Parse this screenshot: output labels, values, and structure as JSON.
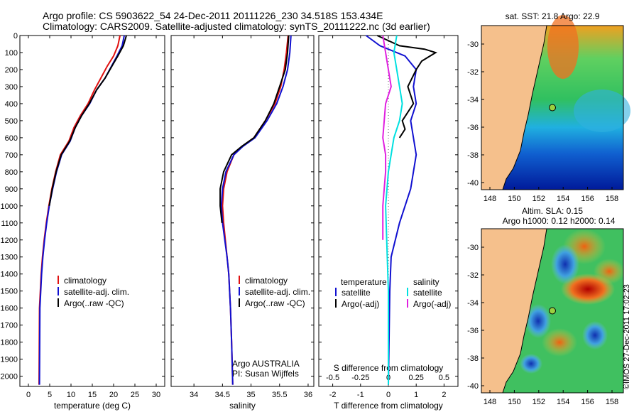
{
  "header": {
    "line1": "Argo profile: CS 5903622_54 24-Dec-2011 20111226_230 34.518S 153.434E",
    "line2": "Climatology: CARS2009. Satellite-adjusted climatology: synTS_20111222.nc (3d earlier)"
  },
  "colors": {
    "climatology": "#e01010",
    "satellite": "#1010d0",
    "argo": "#000000",
    "cyan": "#00e0e0",
    "magenta": "#e020e0",
    "land": "#f5c08c"
  },
  "depth_ticks": [
    0,
    100,
    200,
    300,
    400,
    500,
    600,
    700,
    800,
    900,
    1000,
    1100,
    1200,
    1300,
    1400,
    1500,
    1600,
    1700,
    1800,
    1900,
    2000
  ],
  "chart_data": [
    {
      "type": "line",
      "id": "temperature",
      "xlabel": "temperature (deg C)",
      "ylabel": "",
      "xlim": [
        -2,
        32
      ],
      "ylim": [
        2060,
        0
      ],
      "xticks": [
        0,
        5,
        10,
        15,
        20,
        25,
        30
      ],
      "legend": {
        "position": "bottom-left",
        "entries": [
          "climatology",
          "satellite-adj. clim.",
          "Argo(..raw -QC)"
        ]
      },
      "series": [
        {
          "name": "climatology",
          "color_key": "climatology",
          "x": [
            21.5,
            21.0,
            20.0,
            18.5,
            17.0,
            15.5,
            14.0,
            12.2,
            10.7,
            9.5,
            7.5,
            6.4,
            5.5,
            4.8,
            4.2,
            3.7,
            3.3,
            3.0,
            2.8,
            2.6,
            2.5
          ],
          "y": [
            0,
            60,
            120,
            180,
            250,
            320,
            400,
            470,
            540,
            620,
            700,
            800,
            900,
            1000,
            1100,
            1200,
            1300,
            1400,
            1500,
            1600,
            2050
          ]
        },
        {
          "name": "satellite-adj. clim.",
          "color_key": "satellite",
          "x": [
            22.5,
            22.0,
            20.8,
            19.5,
            18.0,
            16.0,
            14.4,
            12.5,
            11.0,
            9.8,
            7.8,
            6.6,
            5.7,
            4.9,
            4.3,
            3.8,
            3.4,
            3.1,
            2.9,
            2.7,
            2.6
          ],
          "y": [
            0,
            60,
            120,
            180,
            250,
            320,
            400,
            470,
            540,
            620,
            700,
            800,
            900,
            1000,
            1100,
            1200,
            1300,
            1400,
            1500,
            1600,
            2050
          ]
        },
        {
          "name": "Argo(..raw -QC)",
          "color_key": "argo",
          "x": [
            23.0,
            22.3,
            21.0,
            19.6,
            18.0,
            16.0,
            14.3,
            12.5,
            11.0,
            9.7,
            7.7,
            6.5,
            5.6,
            4.9
          ],
          "y": [
            0,
            60,
            120,
            180,
            250,
            320,
            400,
            470,
            540,
            620,
            700,
            800,
            900,
            1000
          ]
        }
      ]
    },
    {
      "type": "line",
      "id": "salinity",
      "xlabel": "salinity",
      "ylabel": "",
      "xlim": [
        33.6,
        36.1
      ],
      "ylim": [
        2060,
        0
      ],
      "xticks": [
        34,
        34.5,
        35,
        35.5,
        36
      ],
      "legend": {
        "position": "bottom-right",
        "entries": [
          "climatology",
          "satellite-adj. clim.",
          "Argo(..raw -QC)"
        ]
      },
      "annotations": [
        "Argo AUSTRALIA",
        "PI: Susan Wijffels"
      ],
      "series": [
        {
          "name": "climatology",
          "color_key": "climatology",
          "x": [
            35.65,
            35.62,
            35.58,
            35.52,
            35.42,
            35.25,
            35.05,
            34.85,
            34.7,
            34.58,
            34.52,
            34.5,
            34.52,
            34.55,
            34.58,
            34.61,
            34.64,
            34.66,
            34.68
          ],
          "y": [
            0,
            100,
            200,
            300,
            400,
            500,
            600,
            650,
            700,
            800,
            900,
            1000,
            1100,
            1200,
            1300,
            1400,
            1600,
            1800,
            2050
          ]
        },
        {
          "name": "satellite-adj. clim.",
          "color_key": "satellite",
          "x": [
            35.7,
            35.68,
            35.64,
            35.56,
            35.45,
            35.28,
            35.07,
            34.86,
            34.7,
            34.56,
            34.5,
            34.48,
            34.5,
            34.54,
            34.58,
            34.61,
            34.64,
            34.66,
            34.68
          ],
          "y": [
            0,
            100,
            200,
            300,
            400,
            500,
            600,
            650,
            700,
            800,
            900,
            1000,
            1100,
            1200,
            1300,
            1400,
            1600,
            1800,
            2050
          ]
        },
        {
          "name": "Argo(..raw -QC)",
          "color_key": "argo",
          "x": [
            35.66,
            35.64,
            35.6,
            35.5,
            35.4,
            35.25,
            35.05,
            34.84,
            34.66,
            34.52,
            34.46,
            34.46,
            34.49
          ],
          "y": [
            0,
            100,
            200,
            300,
            400,
            500,
            600,
            650,
            700,
            800,
            900,
            1000,
            1100
          ]
        }
      ]
    },
    {
      "type": "line",
      "id": "difference",
      "xlabel": "T difference from climatology",
      "xlabel2": "S difference from climatology",
      "ylabel": "",
      "xlim": [
        -2.5,
        2.5
      ],
      "ylim": [
        2060,
        0
      ],
      "xticks": [
        -2,
        -1,
        0,
        1,
        2
      ],
      "xticks_top": [
        "-0.5",
        "-0.25",
        "0",
        "0.25",
        "0.5"
      ],
      "legend_temperature": {
        "title": "temperature",
        "entries": [
          "satellite",
          "Argo(-adj)"
        ]
      },
      "legend_salinity": {
        "title": "salinity",
        "entries": [
          "satellite",
          "Argo(-adj)"
        ]
      },
      "series": [
        {
          "name": "satellite",
          "group": "temperature",
          "color_key": "satellite",
          "x": [
            -0.8,
            -0.3,
            0.6,
            1.0,
            0.9,
            1.0,
            0.8,
            0.9,
            1.0,
            0.9,
            0.8,
            0.4,
            0.1,
            0.05,
            0.0
          ],
          "y": [
            0,
            60,
            120,
            200,
            300,
            400,
            500,
            600,
            700,
            800,
            900,
            1100,
            1300,
            1500,
            2050
          ]
        },
        {
          "name": "Argo(-adj)",
          "group": "temperature",
          "color_key": "argo",
          "x": [
            -0.4,
            0.4,
            1.3,
            1.7,
            1.2,
            1.0,
            0.7,
            0.9,
            0.5,
            0.6,
            0.4
          ],
          "y": [
            0,
            60,
            80,
            100,
            150,
            200,
            300,
            400,
            500,
            550,
            600
          ]
        },
        {
          "name": "satellite",
          "group": "salinity",
          "color_key": "cyan",
          "x": [
            0.3,
            0.2,
            0.3,
            0.4,
            0.5,
            0.4,
            0.2,
            0.0,
            -0.1,
            0.0,
            0.0
          ],
          "y": [
            0,
            100,
            200,
            300,
            400,
            500,
            600,
            800,
            1000,
            1500,
            2050
          ]
        },
        {
          "name": "Argo(-adj)",
          "group": "salinity",
          "color_key": "magenta",
          "x": [
            -0.2,
            -0.1,
            0.0,
            0.1,
            -0.1,
            -0.2,
            -0.1,
            -0.1,
            -0.2,
            -0.2
          ],
          "y": [
            0,
            100,
            200,
            300,
            400,
            600,
            700,
            800,
            1000,
            1200
          ]
        }
      ]
    }
  ],
  "maps": {
    "sst": {
      "title": "sat. SST: 21.8 Argo: 22.9",
      "lat_ticks": [
        "-30",
        "-32",
        "-34",
        "-36",
        "-38",
        "-40"
      ],
      "lon_ticks": [
        "148",
        "150",
        "152",
        "154",
        "156",
        "158"
      ]
    },
    "sla": {
      "title_line1": "Altim. SLA: 0.15",
      "title_line2": "Argo h1000: 0.12 h2000: 0.14",
      "lat_ticks": [
        "-30",
        "-32",
        "-34",
        "-36",
        "-38",
        "-40"
      ],
      "lon_ticks": [
        "148",
        "150",
        "152",
        "154",
        "156",
        "158"
      ]
    }
  },
  "copyright": "©IMOS 27-Dec-2011 17:02:23"
}
